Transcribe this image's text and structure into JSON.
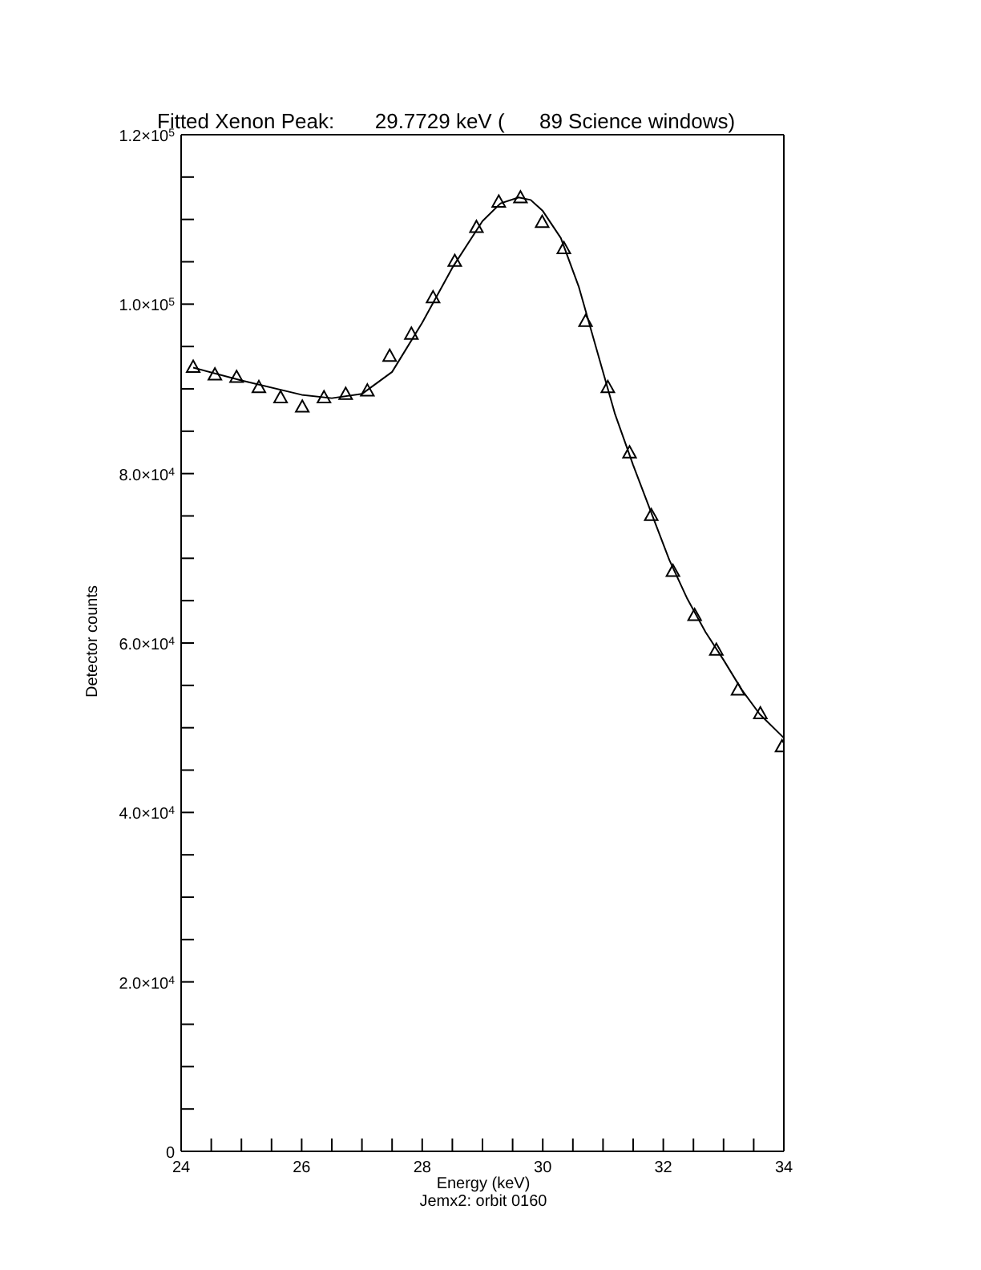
{
  "chart_data": {
    "type": "scatter",
    "title": "Fitted Xenon Peak:       29.7729 keV (      89 Science windows)",
    "xlabel": "Energy (keV)",
    "ylabel": "Detector counts",
    "annotations": [
      "Jemx2: orbit 0160"
    ],
    "series": [
      {
        "type": "scatter",
        "color": "#000000",
        "marker": "triangle",
        "x": [
          24.2,
          24.56,
          24.92,
          25.29,
          25.65,
          26.01,
          26.37,
          26.73,
          27.09,
          27.46,
          27.82,
          28.18,
          28.54,
          28.9,
          29.27,
          29.63,
          29.99,
          30.35,
          30.71,
          31.08,
          31.44,
          31.8,
          32.16,
          32.52,
          32.88,
          33.24,
          33.61,
          33.97
        ],
        "values": [
          92600,
          91700,
          91400,
          90200,
          89000,
          87900,
          89000,
          89400,
          89800,
          93900,
          96500,
          100800,
          105100,
          109100,
          112100,
          112600,
          109700,
          106600,
          98000,
          90200,
          82500,
          75100,
          68500,
          63300,
          59200,
          54500,
          51700,
          47800
        ]
      },
      {
        "type": "line",
        "color": "#000000",
        "marker": "none",
        "line_style": "solid",
        "x": [
          24.2,
          25.0,
          26.0,
          26.5,
          27.0,
          27.5,
          28.0,
          28.5,
          29.0,
          29.3,
          29.6,
          29.8,
          30.0,
          30.3,
          30.6,
          30.9,
          31.2,
          31.5,
          31.8,
          32.1,
          32.4,
          32.7,
          33.0,
          33.3,
          33.6,
          34.0
        ],
        "values": [
          92500,
          91000,
          89300,
          88900,
          89400,
          92000,
          97800,
          104300,
          109800,
          111900,
          112600,
          112300,
          111000,
          107800,
          102000,
          94500,
          87000,
          81000,
          75400,
          69800,
          65200,
          61300,
          58000,
          54500,
          51600,
          48800
        ]
      }
    ],
    "xlim": [
      24,
      34
    ],
    "xticks": [
      24,
      {
        "value": 24.5,
        "label": null
      },
      {
        "value": 25,
        "label": null
      },
      {
        "value": 25.5,
        "label": null
      },
      26,
      {
        "value": 26.5,
        "label": null
      },
      {
        "value": 27,
        "label": null
      },
      {
        "value": 27.5,
        "label": null
      },
      28,
      {
        "value": 28.5,
        "label": null
      },
      {
        "value": 29,
        "label": null
      },
      {
        "value": 29.5,
        "label": null
      },
      30,
      {
        "value": 30.5,
        "label": null
      },
      {
        "value": 31,
        "label": null
      },
      {
        "value": 31.5,
        "label": null
      },
      32,
      {
        "value": 32.5,
        "label": null
      },
      {
        "value": 33,
        "label": null
      },
      {
        "value": 33.5,
        "label": null
      },
      34
    ],
    "ylim": [
      0,
      120000
    ],
    "yticks": [
      0,
      {
        "value": 5000,
        "label": null
      },
      {
        "value": 10000,
        "label": null
      },
      {
        "value": 15000,
        "label": null
      },
      {
        "value": 20000,
        "label": "2.0×10$^{4}$"
      },
      {
        "value": 25000,
        "label": null
      },
      {
        "value": 30000,
        "label": null
      },
      {
        "value": 35000,
        "label": null
      },
      {
        "value": 40000,
        "label": "4.0×10$^{4}$"
      },
      {
        "value": 45000,
        "label": null
      },
      {
        "value": 50000,
        "label": null
      },
      {
        "value": 55000,
        "label": null
      },
      {
        "value": 60000,
        "label": "6.0×10$^{4}$"
      },
      {
        "value": 65000,
        "label": null
      },
      {
        "value": 70000,
        "label": null
      },
      {
        "value": 75000,
        "label": null
      },
      {
        "value": 80000,
        "label": "8.0×10$^{4}$"
      },
      {
        "value": 85000,
        "label": null
      },
      {
        "value": 90000,
        "label": null
      },
      {
        "value": 95000,
        "label": null
      },
      {
        "value": 100000,
        "label": "1.0×10$^{5}$"
      },
      {
        "value": 105000,
        "label": null
      },
      {
        "value": 110000,
        "label": null
      },
      {
        "value": 115000,
        "label": null
      },
      {
        "value": 120000,
        "label": "1.2×10$^{5}$"
      }
    ],
    "grid": false,
    "legend": false
  }
}
